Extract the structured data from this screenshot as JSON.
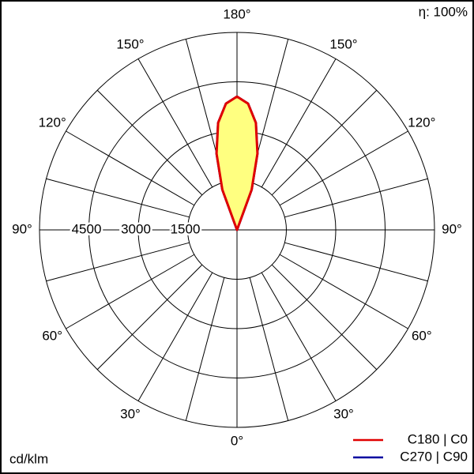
{
  "chart_data": {
    "type": "polar",
    "efficiency_label": "η: 100%",
    "unit_label": "cd/klm",
    "rlim": [
      0,
      6000
    ],
    "rticks": [
      1500,
      3000,
      4500
    ],
    "angle_grid": [
      0,
      15,
      30,
      45,
      60,
      75,
      90,
      105,
      120,
      135,
      150,
      165,
      180
    ],
    "angle_ticks": [
      {
        "value": 0,
        "label": "0°"
      },
      {
        "value": 30,
        "label": "30°"
      },
      {
        "value": 60,
        "label": "60°"
      },
      {
        "value": 90,
        "label": "90°"
      },
      {
        "value": 120,
        "label": "120°"
      },
      {
        "value": 150,
        "label": "150°"
      },
      {
        "value": 180,
        "label": "180°"
      }
    ],
    "x": [
      -155,
      -160,
      -165,
      -170,
      -175,
      180,
      175,
      170,
      165,
      160,
      155
    ],
    "fill": "#ffff80",
    "series": [
      {
        "name": "C270 | C90",
        "color": "#0000a0",
        "values": [
          0,
          1300,
          2400,
          3300,
          3850,
          4050,
          3850,
          3300,
          2400,
          1300,
          0
        ]
      },
      {
        "name": "C180 | C0",
        "color": "#e00000",
        "values": [
          0,
          1300,
          2400,
          3300,
          3850,
          4050,
          3850,
          3300,
          2400,
          1300,
          0
        ]
      }
    ]
  }
}
